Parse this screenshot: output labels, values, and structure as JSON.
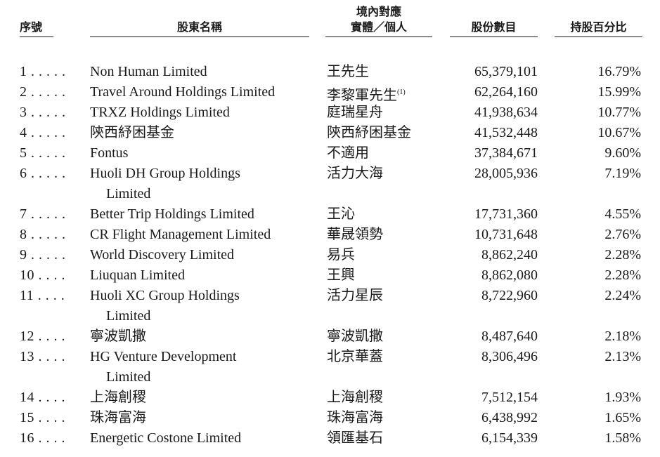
{
  "headers": {
    "seq": "序號",
    "name": "股東名稱",
    "entity_line1": "境內對應",
    "entity_line2": "實體／個人",
    "shares": "股份數目",
    "pct": "持股百分比"
  },
  "rows": [
    {
      "seq": "1 . . . . .",
      "name": "Non Human Limited",
      "name2": "",
      "entity": "王先生",
      "note": "",
      "shares": "65,379,101",
      "pct": "16.79%"
    },
    {
      "seq": "2 . . . . .",
      "name": "Travel Around Holdings Limited",
      "name2": "",
      "entity": "李黎軍先生",
      "note": "(1)",
      "shares": "62,264,160",
      "pct": "15.99%"
    },
    {
      "seq": "3 . . . . .",
      "name": "TRXZ Holdings Limited",
      "name2": "",
      "entity": "庭瑞星舟",
      "note": "",
      "shares": "41,938,634",
      "pct": "10.77%"
    },
    {
      "seq": "4 . . . . .",
      "name": "陝西紓困基金",
      "name2": "",
      "entity": "陝西紓困基金",
      "note": "",
      "shares": "41,532,448",
      "pct": "10.67%"
    },
    {
      "seq": "5 . . . . .",
      "name": "Fontus",
      "name2": "",
      "entity": "不適用",
      "note": "",
      "shares": "37,384,671",
      "pct": "9.60%"
    },
    {
      "seq": "6 . . . . .",
      "name": "Huoli DH Group Holdings",
      "name2": "Limited",
      "entity": "活力大海",
      "note": "",
      "shares": "28,005,936",
      "pct": "7.19%"
    },
    {
      "seq": "7 . . . . .",
      "name": "Better Trip Holdings Limited",
      "name2": "",
      "entity": "王沁",
      "note": "",
      "shares": "17,731,360",
      "pct": "4.55%"
    },
    {
      "seq": "8 . . . . .",
      "name": "CR Flight Management Limited",
      "name2": "",
      "entity": "華晟領勢",
      "note": "",
      "shares": "10,731,648",
      "pct": "2.76%"
    },
    {
      "seq": "9 . . . . .",
      "name": "World Discovery Limited",
      "name2": "",
      "entity": "易兵",
      "note": "",
      "shares": "8,862,240",
      "pct": "2.28%"
    },
    {
      "seq": "10 . . . .",
      "name": "Liuquan Limited",
      "name2": "",
      "entity": "王興",
      "note": "",
      "shares": "8,862,080",
      "pct": "2.28%"
    },
    {
      "seq": "11 . . . .",
      "name": "Huoli XC Group Holdings",
      "name2": "Limited",
      "entity": "活力星辰",
      "note": "",
      "shares": "8,722,960",
      "pct": "2.24%"
    },
    {
      "seq": "12 . . . .",
      "name": "寧波凱撒",
      "name2": "",
      "entity": "寧波凱撒",
      "note": "",
      "shares": "8,487,640",
      "pct": "2.18%"
    },
    {
      "seq": "13 . . . .",
      "name": "HG Venture Development",
      "name2": "Limited",
      "entity": "北京華蓋",
      "note": "",
      "shares": "8,306,496",
      "pct": "2.13%"
    },
    {
      "seq": "14 . . . .",
      "name": "上海創稷",
      "name2": "",
      "entity": "上海創稷",
      "note": "",
      "shares": "7,512,154",
      "pct": "1.93%"
    },
    {
      "seq": "15 . . . .",
      "name": "珠海富海",
      "name2": "",
      "entity": "珠海富海",
      "note": "",
      "shares": "6,438,992",
      "pct": "1.65%"
    },
    {
      "seq": "16 . . . .",
      "name": "Energetic Costone Limited",
      "name2": "",
      "entity": "領匯基石",
      "note": "",
      "shares": "6,154,339",
      "pct": "1.58%"
    }
  ]
}
